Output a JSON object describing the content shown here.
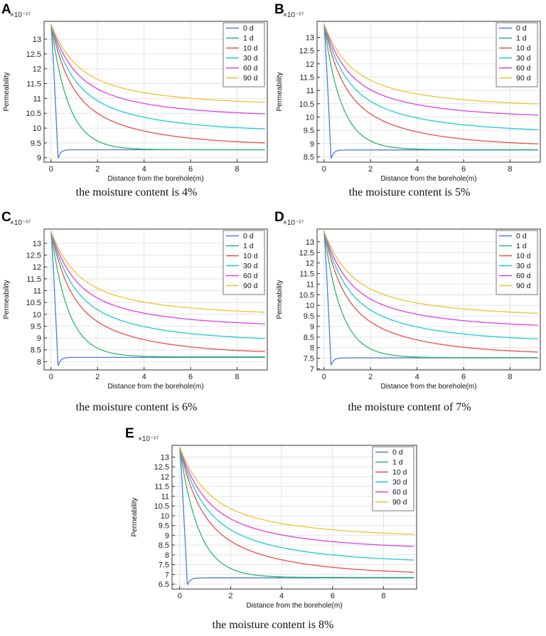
{
  "colors": {
    "0 d": "#4a7de0",
    "1 d": "#2db86b",
    "10 d": "#e8504a",
    "30 d": "#18cfd0",
    "60 d": "#e040e0",
    "90 d": "#f2c030",
    "grid": "#e4e4e4",
    "axis": "#333333"
  },
  "chart_data": [
    {
      "type": "line",
      "panel": "A",
      "caption": "the moisture content is 4%",
      "xlabel": "Distance from the borehole(m)",
      "ylabel": "Permeability",
      "exponent": "×10⁻¹⁷",
      "xlim": [
        -0.3,
        9.3
      ],
      "ylim": [
        8.85,
        13.6
      ],
      "xticks": [
        0,
        2,
        4,
        6,
        8
      ],
      "yticks": [
        9,
        9.5,
        10,
        10.5,
        11,
        11.5,
        12,
        12.5,
        13
      ],
      "yticklabels": [
        "9",
        "9.5",
        "10",
        "10.5",
        "11",
        "11.5",
        "12",
        "12.5",
        "13"
      ],
      "legend": [
        "0 d",
        "1 d",
        "10 d",
        "30 d",
        "60 d",
        "90 d"
      ],
      "start": 13.5,
      "dip": 8.97,
      "series": [
        {
          "name": "0 d",
          "final": 9.27
        },
        {
          "name": "1 d",
          "final": 9.27
        },
        {
          "name": "10 d",
          "final": 9.42
        },
        {
          "name": "30 d",
          "final": 9.88
        },
        {
          "name": "60 d",
          "final": 10.39
        },
        {
          "name": "90 d",
          "final": 10.77
        }
      ]
    },
    {
      "type": "line",
      "panel": "B",
      "caption": "the moisture content is 5%",
      "xlabel": "Distance from the borehole(m)",
      "ylabel": "Permeability",
      "exponent": "×10⁻¹⁷",
      "xlim": [
        -0.3,
        9.3
      ],
      "ylim": [
        8.3,
        13.6
      ],
      "xticks": [
        0,
        2,
        4,
        6,
        8
      ],
      "yticks": [
        8.5,
        9,
        9.5,
        10,
        10.5,
        11,
        11.5,
        12,
        12.5,
        13
      ],
      "yticklabels": [
        "8.5",
        "9",
        "9.5",
        "10",
        "10.5",
        "11",
        "11.5",
        "12",
        "12.5",
        "13"
      ],
      "legend": [
        "0 d",
        "1 d",
        "10 d",
        "30 d",
        "60 d",
        "90 d"
      ],
      "start": 13.5,
      "dip": 8.42,
      "series": [
        {
          "name": "0 d",
          "final": 8.76
        },
        {
          "name": "1 d",
          "final": 8.77
        },
        {
          "name": "10 d",
          "final": 8.9
        },
        {
          "name": "30 d",
          "final": 9.42
        },
        {
          "name": "60 d",
          "final": 9.97
        },
        {
          "name": "90 d",
          "final": 10.38
        }
      ]
    },
    {
      "type": "line",
      "panel": "C",
      "caption": "the moisture content is 6%",
      "xlabel": "Distance from the borehole(m)",
      "ylabel": "Permeability",
      "exponent": "×10⁻¹⁷",
      "xlim": [
        -0.3,
        9.3
      ],
      "ylim": [
        7.65,
        13.6
      ],
      "xticks": [
        0,
        2,
        4,
        6,
        8
      ],
      "yticks": [
        8,
        8.5,
        9,
        9.5,
        10,
        10.5,
        11,
        11.5,
        12,
        12.5,
        13
      ],
      "yticklabels": [
        "8",
        "8.5",
        "9",
        "9.5",
        "10",
        "10.5",
        "11",
        "11.5",
        "12",
        "12.5",
        "13"
      ],
      "legend": [
        "0 d",
        "1 d",
        "10 d",
        "30 d",
        "60 d",
        "90 d"
      ],
      "start": 13.5,
      "dip": 7.8,
      "series": [
        {
          "name": "0 d",
          "final": 8.18
        },
        {
          "name": "1 d",
          "final": 8.2
        },
        {
          "name": "10 d",
          "final": 8.32
        },
        {
          "name": "30 d",
          "final": 8.86
        },
        {
          "name": "60 d",
          "final": 9.48
        },
        {
          "name": "90 d",
          "final": 9.96
        }
      ]
    },
    {
      "type": "line",
      "panel": "D",
      "caption": "the moisture content of 7%",
      "xlabel": "Distance from the borehole(m)",
      "ylabel": "Permeability",
      "exponent": "×10⁻¹⁷",
      "xlim": [
        -0.3,
        9.3
      ],
      "ylim": [
        6.95,
        13.6
      ],
      "xticks": [
        0,
        2,
        4,
        6,
        8
      ],
      "yticks": [
        7,
        7.5,
        8,
        8.5,
        9,
        9.5,
        10,
        10.5,
        11,
        11.5,
        12,
        12.5,
        13
      ],
      "yticklabels": [
        "7",
        "7.5",
        "8",
        "8.5",
        "9",
        "9.5",
        "10",
        "10.5",
        "11",
        "11.5",
        "12",
        "12.5",
        "13"
      ],
      "legend": [
        "0 d",
        "1 d",
        "10 d",
        "30 d",
        "60 d",
        "90 d"
      ],
      "start": 13.5,
      "dip": 7.15,
      "series": [
        {
          "name": "0 d",
          "final": 7.52
        },
        {
          "name": "1 d",
          "final": 7.53
        },
        {
          "name": "10 d",
          "final": 7.68
        },
        {
          "name": "30 d",
          "final": 8.28
        },
        {
          "name": "60 d",
          "final": 8.93
        },
        {
          "name": "90 d",
          "final": 9.48
        }
      ]
    },
    {
      "type": "line",
      "panel": "E",
      "caption": "the moisture content is 8%",
      "xlabel": "Distance from the borehole(m)",
      "ylabel": "Permeability",
      "exponent": "×10⁻¹⁷",
      "xlim": [
        -0.3,
        9.3
      ],
      "ylim": [
        6.25,
        13.6
      ],
      "xticks": [
        0,
        2,
        4,
        6,
        8
      ],
      "yticks": [
        6.5,
        7,
        7.5,
        8,
        8.5,
        9,
        9.5,
        10,
        10.5,
        11,
        11.5,
        12,
        12.5,
        13
      ],
      "yticklabels": [
        "6.5",
        "7",
        "7.5",
        "8",
        "8.5",
        "9",
        "9.5",
        "10",
        "10.5",
        "11",
        "11.5",
        "12",
        "12.5",
        "13"
      ],
      "legend": [
        "0 d",
        "1 d",
        "10 d",
        "30 d",
        "60 d",
        "90 d"
      ],
      "start": 13.5,
      "dip": 6.45,
      "series": [
        {
          "name": "0 d",
          "final": 6.82
        },
        {
          "name": "1 d",
          "final": 6.84
        },
        {
          "name": "10 d",
          "final": 6.98
        },
        {
          "name": "30 d",
          "final": 7.58
        },
        {
          "name": "60 d",
          "final": 8.28
        },
        {
          "name": "90 d",
          "final": 8.88
        }
      ]
    }
  ]
}
